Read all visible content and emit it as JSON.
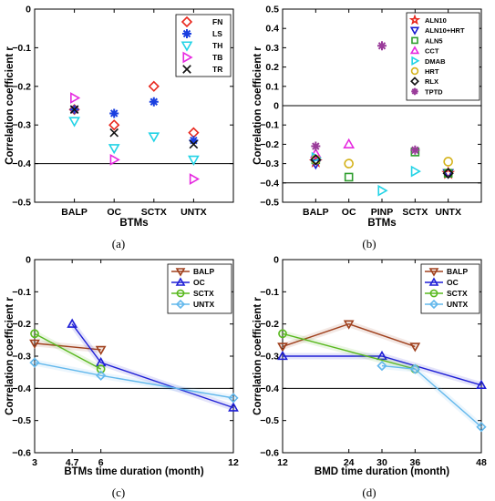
{
  "chart_data": [
    {
      "panel_label": "(a)",
      "type": "scatter",
      "xlabel": "BTMs",
      "ylabel": "Correlation coefficient r",
      "categories": [
        "BALP",
        "OC",
        "SCTX",
        "UNTX"
      ],
      "ylim": [
        -0.5,
        0
      ],
      "yticks": [
        "0",
        "−0.1",
        "−0.2",
        "−0.3",
        "−0.4",
        "−0.5"
      ],
      "yticks_values": [
        0,
        -0.1,
        -0.2,
        -0.3,
        -0.4,
        -0.5
      ],
      "reference_line": -0.4,
      "legend_position": "top-right",
      "series": [
        {
          "name": "FN",
          "marker": "diamond",
          "color": "#e8281e",
          "values": [
            -0.26,
            -0.3,
            -0.2,
            -0.32
          ]
        },
        {
          "name": "LS",
          "marker": "asterisk",
          "color": "#1a3fe0",
          "values": [
            -0.26,
            -0.27,
            -0.24,
            -0.34
          ]
        },
        {
          "name": "TH",
          "marker": "triangle-down",
          "color": "#22d3e6",
          "values": [
            -0.29,
            -0.36,
            -0.33,
            -0.39
          ]
        },
        {
          "name": "TB",
          "marker": "triangle-right",
          "color": "#e62ae0",
          "values": [
            -0.23,
            -0.39,
            null,
            -0.44
          ]
        },
        {
          "name": "TR",
          "marker": "x",
          "color": "#111111",
          "values": [
            -0.26,
            -0.32,
            null,
            -0.35
          ]
        }
      ]
    },
    {
      "panel_label": "(b)",
      "type": "scatter",
      "xlabel": "BTMs",
      "ylabel": "Correlation coefficient r",
      "categories": [
        "BALP",
        "OC",
        "PINP",
        "SCTX",
        "UNTX"
      ],
      "ylim": [
        -0.5,
        0.5
      ],
      "yticks": [
        "0.5",
        "0.4",
        "0.3",
        "0.2",
        "0.1",
        "0",
        "−0.1",
        "−0.2",
        "−0.3",
        "−0.4",
        "−0.5"
      ],
      "yticks_values": [
        0.5,
        0.4,
        0.3,
        0.2,
        0.1,
        0,
        -0.1,
        -0.2,
        -0.3,
        -0.4,
        -0.5
      ],
      "reference_lines": [
        0,
        -0.4
      ],
      "legend_position": "top-right",
      "series": [
        {
          "name": "ALN10",
          "marker": "star",
          "color": "#e8281e",
          "values": [
            -0.29,
            null,
            null,
            null,
            -0.35
          ]
        },
        {
          "name": "ALN10+HRT",
          "marker": "triangle-down",
          "color": "#1a1ad0",
          "values": [
            -0.3,
            null,
            null,
            null,
            -0.35
          ]
        },
        {
          "name": "ALN5",
          "marker": "square",
          "color": "#2f9e2f",
          "values": [
            -0.28,
            -0.37,
            null,
            -0.24,
            -0.35
          ]
        },
        {
          "name": "CCT",
          "marker": "triangle-up",
          "color": "#e62ae0",
          "values": [
            -0.25,
            -0.2,
            null,
            null,
            null
          ]
        },
        {
          "name": "DMAB",
          "marker": "triangle-right",
          "color": "#22d3e6",
          "values": [
            -0.27,
            null,
            -0.44,
            -0.34,
            null
          ]
        },
        {
          "name": "HRT",
          "marker": "circle",
          "color": "#d4b21a",
          "values": [
            -0.28,
            -0.3,
            null,
            null,
            -0.29
          ]
        },
        {
          "name": "RLX",
          "marker": "diamond",
          "color": "#111111",
          "values": [
            -0.28,
            null,
            null,
            null,
            -0.35
          ]
        },
        {
          "name": "TPTD",
          "marker": "asterisk",
          "color": "#9a3c9a",
          "values": [
            -0.21,
            null,
            0.31,
            -0.23,
            null
          ]
        }
      ]
    },
    {
      "panel_label": "(c)",
      "type": "line",
      "xlabel": "BTMs time duration (month)",
      "ylabel": "Correlation coefficient r",
      "xlim": [
        3,
        12
      ],
      "xticks": [
        3,
        4.7,
        6,
        12
      ],
      "ylim": [
        -0.6,
        0
      ],
      "yticks": [
        "0",
        "−0.1",
        "−0.2",
        "−0.3",
        "−0.4",
        "−0.5",
        "−0.6"
      ],
      "yticks_values": [
        0,
        -0.1,
        -0.2,
        -0.3,
        -0.4,
        -0.5,
        -0.6
      ],
      "reference_line": -0.4,
      "legend_position": "top-right",
      "series": [
        {
          "name": "BALP",
          "marker": "triangle-down",
          "color": "#a0411e",
          "x": [
            3,
            6
          ],
          "y": [
            -0.26,
            -0.28
          ]
        },
        {
          "name": "OC",
          "marker": "triangle-up",
          "color": "#1f1fd6",
          "x": [
            4.7,
            6,
            12
          ],
          "y": [
            -0.2,
            -0.32,
            -0.46
          ]
        },
        {
          "name": "SCTX",
          "marker": "circle",
          "color": "#58b81e",
          "x": [
            3,
            6
          ],
          "y": [
            -0.23,
            -0.34
          ]
        },
        {
          "name": "UNTX",
          "marker": "diamond",
          "color": "#63b8ec",
          "x": [
            3,
            6,
            12
          ],
          "y": [
            -0.32,
            -0.36,
            -0.43
          ]
        }
      ]
    },
    {
      "panel_label": "(d)",
      "type": "line",
      "xlabel": "BMD time duration (month)",
      "ylabel": "Correlation coefficient r",
      "xlim": [
        12,
        48
      ],
      "xticks": [
        12,
        24,
        30,
        36,
        48
      ],
      "ylim": [
        -0.6,
        0
      ],
      "yticks": [
        "0",
        "−0.1",
        "−0.2",
        "−0.3",
        "−0.4",
        "−0.5",
        "−0.6"
      ],
      "yticks_values": [
        0,
        -0.1,
        -0.2,
        -0.3,
        -0.4,
        -0.5,
        -0.6
      ],
      "reference_line": -0.4,
      "legend_position": "top-right",
      "series": [
        {
          "name": "BALP",
          "marker": "triangle-down",
          "color": "#a0411e",
          "x": [
            12,
            24,
            36
          ],
          "y": [
            -0.27,
            -0.2,
            -0.27
          ]
        },
        {
          "name": "OC",
          "marker": "triangle-up",
          "color": "#1f1fd6",
          "x": [
            12,
            30,
            48
          ],
          "y": [
            -0.3,
            -0.3,
            -0.39
          ]
        },
        {
          "name": "SCTX",
          "marker": "circle",
          "color": "#58b81e",
          "x": [
            12,
            36
          ],
          "y": [
            -0.23,
            -0.34
          ]
        },
        {
          "name": "UNTX",
          "marker": "diamond",
          "color": "#63b8ec",
          "x": [
            30,
            36,
            48
          ],
          "y": [
            -0.33,
            -0.34,
            -0.52
          ]
        }
      ]
    }
  ]
}
